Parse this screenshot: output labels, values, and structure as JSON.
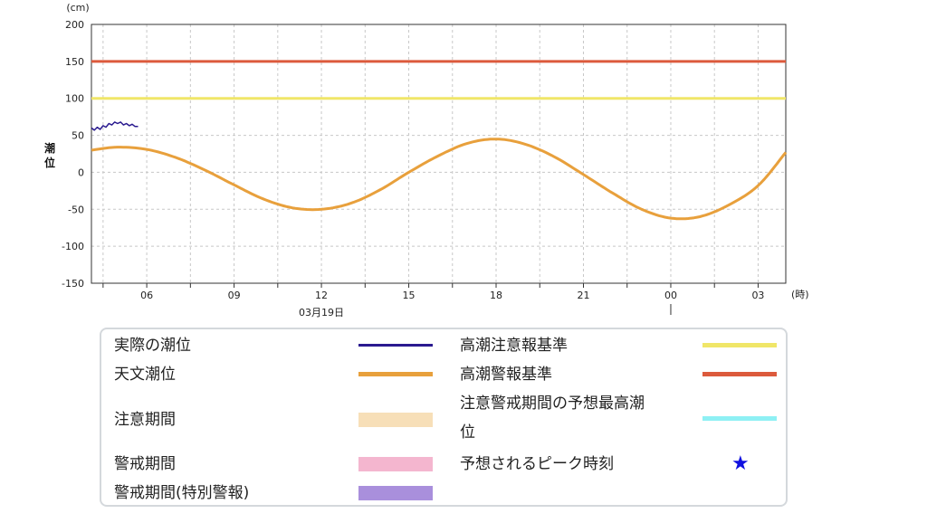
{
  "chart_data": {
    "type": "line",
    "y_unit": "(cm)",
    "ylabel": "潮位",
    "ylim": [
      -150,
      200
    ],
    "yticks": [
      200,
      150,
      100,
      50,
      0,
      -50,
      -100,
      -150
    ],
    "x_unit": "(時)",
    "date_label": "03月19日",
    "xtick_labels": [
      "06",
      "09",
      "12",
      "15",
      "18",
      "21",
      "00",
      "03"
    ],
    "grid": true,
    "series": [
      {
        "name": "実際の潮位",
        "color": "#2a1a8f",
        "x": [
          4.1,
          4.2,
          4.3,
          4.4,
          4.5,
          4.6,
          4.7,
          4.8,
          4.9,
          5.0,
          5.1,
          5.2,
          5.3,
          5.4,
          5.5,
          5.6,
          5.7
        ],
        "values": [
          60,
          57,
          61,
          58,
          63,
          61,
          66,
          64,
          68,
          66,
          68,
          64,
          66,
          63,
          65,
          62,
          62
        ]
      },
      {
        "name": "天文潮位",
        "color": "#e8a03c",
        "x": [
          4.1,
          5.0,
          6.0,
          7.0,
          8.0,
          9.0,
          10.0,
          11.0,
          12.0,
          13.0,
          14.0,
          15.0,
          16.0,
          17.0,
          18.0,
          19.0,
          20.0,
          21.0,
          22.0,
          23.0,
          24.0,
          25.0,
          26.0,
          27.0,
          27.95
        ],
        "values": [
          30,
          34,
          31,
          20,
          3,
          -17,
          -36,
          -48,
          -50,
          -42,
          -24,
          0,
          22,
          39,
          45,
          38,
          21,
          -3,
          -28,
          -50,
          -62,
          -60,
          -44,
          -18,
          27
        ]
      },
      {
        "name": "高潮注意報基準",
        "color": "#f0e668",
        "x": [
          4.1,
          27.95
        ],
        "values": [
          100,
          100
        ]
      },
      {
        "name": "高潮警報基準",
        "color": "#dc5a3c",
        "x": [
          4.1,
          27.95
        ],
        "values": [
          150,
          150
        ]
      }
    ]
  },
  "legend": {
    "items": [
      {
        "label": "実際の潮位",
        "color": "#2a1a8f",
        "kind": "line"
      },
      {
        "label": "天文潮位",
        "color": "#e8a03c",
        "kind": "line"
      },
      {
        "label": "注意期間",
        "color": "#f7dfb8",
        "kind": "box"
      },
      {
        "label": "警戒期間",
        "color": "#f4b6cf",
        "kind": "box"
      },
      {
        "label": "警戒期間(特別警報)",
        "color": "#a98fdc",
        "kind": "box"
      },
      {
        "label": "高潮注意報基準",
        "color": "#f0e668",
        "kind": "line"
      },
      {
        "label": "高潮警報基準",
        "color": "#dc5a3c",
        "kind": "line"
      },
      {
        "label_line1": "注意警戒期間の予想最高潮",
        "label_line2": "位",
        "color": "#8ef0f4",
        "kind": "line"
      },
      {
        "label": "予想されるピーク時刻",
        "color": "#1010e0",
        "kind": "star",
        "icon": "star-icon"
      }
    ]
  }
}
